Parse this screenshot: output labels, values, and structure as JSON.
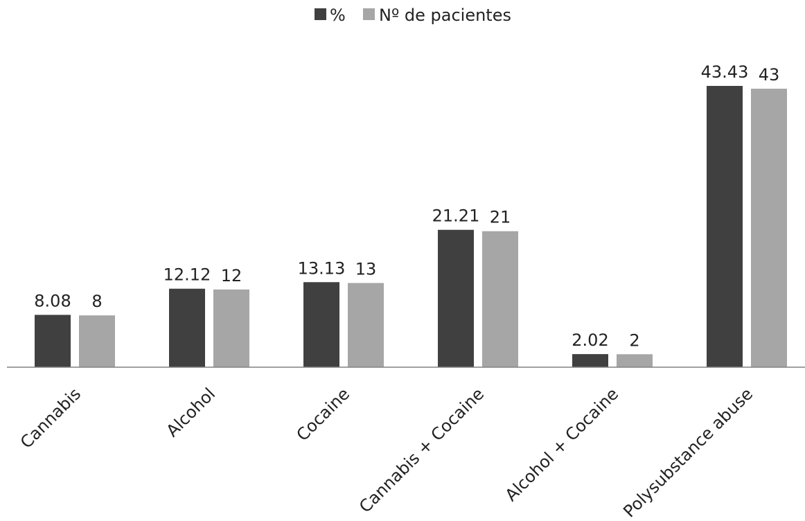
{
  "chart_data": {
    "type": "bar",
    "categories": [
      "Cannabis",
      "Alcohol",
      "Cocaine",
      "Cannabis + Cocaine",
      "Alcohol + Cocaine",
      "Polysubstance abuse"
    ],
    "series": [
      {
        "name": "%",
        "values": [
          8.08,
          12.12,
          13.13,
          21.21,
          2.02,
          43.43
        ],
        "labels": [
          "8.08",
          "12.12",
          "13.13",
          "21.21",
          "2.02",
          "43.43"
        ],
        "color": "#404040"
      },
      {
        "name": "Nº de pacientes",
        "values": [
          8,
          12,
          13,
          21,
          2,
          43
        ],
        "labels": [
          "8",
          "12",
          "13",
          "21",
          "2",
          "43"
        ],
        "color": "#a6a6a6"
      }
    ],
    "title": "",
    "xlabel": "",
    "ylabel": "",
    "ylim": [
      0,
      50
    ],
    "grid": false,
    "legend_position": "top-center",
    "axis_color": "#808080"
  }
}
